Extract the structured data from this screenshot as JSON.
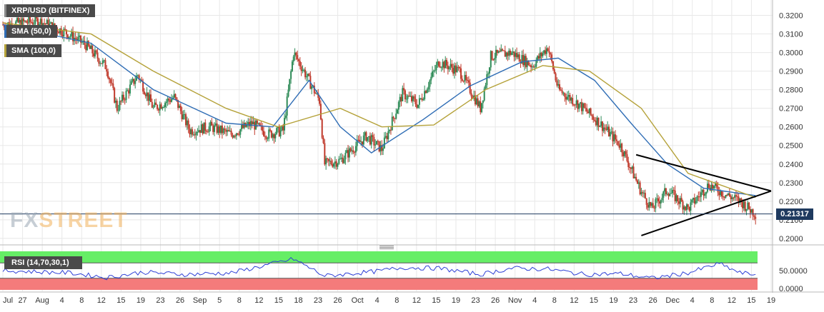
{
  "legend": {
    "title": "XRP/USD (BITFINEX)",
    "sma50": "SMA (50,0)",
    "sma100": "SMA (100,0)"
  },
  "rsi": {
    "label": "RSI (14,70,30,1)",
    "ticks": [
      "50.0000",
      "0.0000"
    ],
    "upper": 70,
    "lower": 30,
    "max": 100,
    "min": 0
  },
  "watermark": {
    "part1": "FX",
    "part2": "STREET"
  },
  "current_price": "0.21317",
  "colors": {
    "up": "#2e8b57",
    "down": "#c0392b",
    "sma50": "#2f6db5",
    "sma100": "#b5a23a",
    "rsi_line": "#2d3fd6",
    "rsi_upper_zone": "#66ee66",
    "rsi_lower_zone": "#f47b7b",
    "grid": "#e8e8e8",
    "price_line": "#1f3a5f",
    "trendline": "#000000"
  },
  "chart_data": {
    "type": "line",
    "title": "XRP/USD (BITFINEX)",
    "xlabel": "",
    "ylabel": "",
    "ylim": [
      0.1965,
      0.3275
    ],
    "grid": true,
    "yticks": [
      "0.3200",
      "0.3100",
      "0.3000",
      "0.2900",
      "0.2800",
      "0.2700",
      "0.2600",
      "0.2500",
      "0.2400",
      "0.2300",
      "0.2200",
      "0.2100",
      "0.2000"
    ],
    "xticks": [
      "Jul",
      "27",
      "Aug",
      "4",
      "8",
      "12",
      "15",
      "19",
      "23",
      "26",
      "Sep",
      "5",
      "8",
      "12",
      "15",
      "18",
      "23",
      "26",
      "Oct",
      "4",
      "8",
      "12",
      "15",
      "19",
      "23",
      "26",
      "Nov",
      "4",
      "8",
      "12",
      "15",
      "19",
      "23",
      "26",
      "Dec",
      "4",
      "8",
      "12",
      "15",
      "19"
    ],
    "date_range": [
      "2019-07-24",
      "2019-12-19"
    ],
    "series": [
      {
        "name": "XRP/USD close",
        "points": [
          [
            "2019-07-24",
            0.315
          ],
          [
            "2019-07-31",
            0.317
          ],
          [
            "2019-08-05",
            0.311
          ],
          [
            "2019-08-09",
            0.304
          ],
          [
            "2019-08-13",
            0.292
          ],
          [
            "2019-08-15",
            0.27
          ],
          [
            "2019-08-19",
            0.288
          ],
          [
            "2019-08-22",
            0.27
          ],
          [
            "2019-08-26",
            0.276
          ],
          [
            "2019-08-29",
            0.258
          ],
          [
            "2019-09-02",
            0.26
          ],
          [
            "2019-09-06",
            0.256
          ],
          [
            "2019-09-10",
            0.262
          ],
          [
            "2019-09-13",
            0.256
          ],
          [
            "2019-09-16",
            0.258
          ],
          [
            "2019-09-18",
            0.3
          ],
          [
            "2019-09-20",
            0.29
          ],
          [
            "2019-09-23",
            0.274
          ],
          [
            "2019-09-24",
            0.24
          ],
          [
            "2019-09-27",
            0.242
          ],
          [
            "2019-10-02",
            0.255
          ],
          [
            "2019-10-05",
            0.248
          ],
          [
            "2019-10-09",
            0.278
          ],
          [
            "2019-10-12",
            0.272
          ],
          [
            "2019-10-16",
            0.295
          ],
          [
            "2019-10-20",
            0.29
          ],
          [
            "2019-10-24",
            0.27
          ],
          [
            "2019-10-26",
            0.298
          ],
          [
            "2019-10-30",
            0.3
          ],
          [
            "2019-11-03",
            0.293
          ],
          [
            "2019-11-06",
            0.303
          ],
          [
            "2019-11-08",
            0.28
          ],
          [
            "2019-11-12",
            0.272
          ],
          [
            "2019-11-16",
            0.262
          ],
          [
            "2019-11-20",
            0.25
          ],
          [
            "2019-11-24",
            0.225
          ],
          [
            "2019-11-26",
            0.216
          ],
          [
            "2019-11-29",
            0.226
          ],
          [
            "2019-12-03",
            0.216
          ],
          [
            "2019-12-07",
            0.229
          ],
          [
            "2019-12-10",
            0.224
          ],
          [
            "2019-12-13",
            0.22
          ],
          [
            "2019-12-16",
            0.2132
          ]
        ]
      },
      {
        "name": "SMA (50,0)",
        "points": [
          [
            "2019-07-24",
            0.315
          ],
          [
            "2019-08-10",
            0.305
          ],
          [
            "2019-08-22",
            0.28
          ],
          [
            "2019-09-05",
            0.262
          ],
          [
            "2019-09-14",
            0.26
          ],
          [
            "2019-09-21",
            0.285
          ],
          [
            "2019-09-27",
            0.26
          ],
          [
            "2019-10-03",
            0.246
          ],
          [
            "2019-10-13",
            0.264
          ],
          [
            "2019-10-22",
            0.282
          ],
          [
            "2019-11-01",
            0.295
          ],
          [
            "2019-11-08",
            0.297
          ],
          [
            "2019-11-15",
            0.285
          ],
          [
            "2019-11-22",
            0.262
          ],
          [
            "2019-11-29",
            0.24
          ],
          [
            "2019-12-06",
            0.227
          ],
          [
            "2019-12-16",
            0.223
          ]
        ]
      },
      {
        "name": "SMA (100,0)",
        "points": [
          [
            "2019-07-24",
            0.316
          ],
          [
            "2019-08-10",
            0.31
          ],
          [
            "2019-08-22",
            0.29
          ],
          [
            "2019-09-05",
            0.27
          ],
          [
            "2019-09-15",
            0.26
          ],
          [
            "2019-09-27",
            0.27
          ],
          [
            "2019-10-05",
            0.26
          ],
          [
            "2019-10-15",
            0.261
          ],
          [
            "2019-10-25",
            0.28
          ],
          [
            "2019-11-05",
            0.293
          ],
          [
            "2019-11-14",
            0.29
          ],
          [
            "2019-11-24",
            0.27
          ],
          [
            "2019-12-03",
            0.235
          ],
          [
            "2019-12-16",
            0.222
          ]
        ]
      }
    ],
    "trendlines": [
      [
        [
          "2019-11-23",
          0.245
        ],
        [
          "2019-12-19",
          0.2255
        ]
      ],
      [
        [
          "2019-11-24",
          0.2015
        ],
        [
          "2019-12-19",
          0.2255
        ]
      ]
    ],
    "annotations": [
      "0.21317"
    ],
    "rsi_points": [
      [
        "2019-07-24",
        50
      ],
      [
        "2019-08-06",
        44
      ],
      [
        "2019-08-13",
        32
      ],
      [
        "2019-08-20",
        46
      ],
      [
        "2019-08-28",
        40
      ],
      [
        "2019-09-06",
        44
      ],
      [
        "2019-09-18",
        80
      ],
      [
        "2019-09-24",
        36
      ],
      [
        "2019-10-04",
        48
      ],
      [
        "2019-10-09",
        58
      ],
      [
        "2019-10-16",
        56
      ],
      [
        "2019-10-24",
        40
      ],
      [
        "2019-10-30",
        56
      ],
      [
        "2019-11-06",
        54
      ],
      [
        "2019-11-13",
        40
      ],
      [
        "2019-11-20",
        42
      ],
      [
        "2019-11-26",
        30
      ],
      [
        "2019-12-03",
        44
      ],
      [
        "2019-12-09",
        68
      ],
      [
        "2019-12-13",
        44
      ],
      [
        "2019-12-16",
        40
      ]
    ]
  }
}
